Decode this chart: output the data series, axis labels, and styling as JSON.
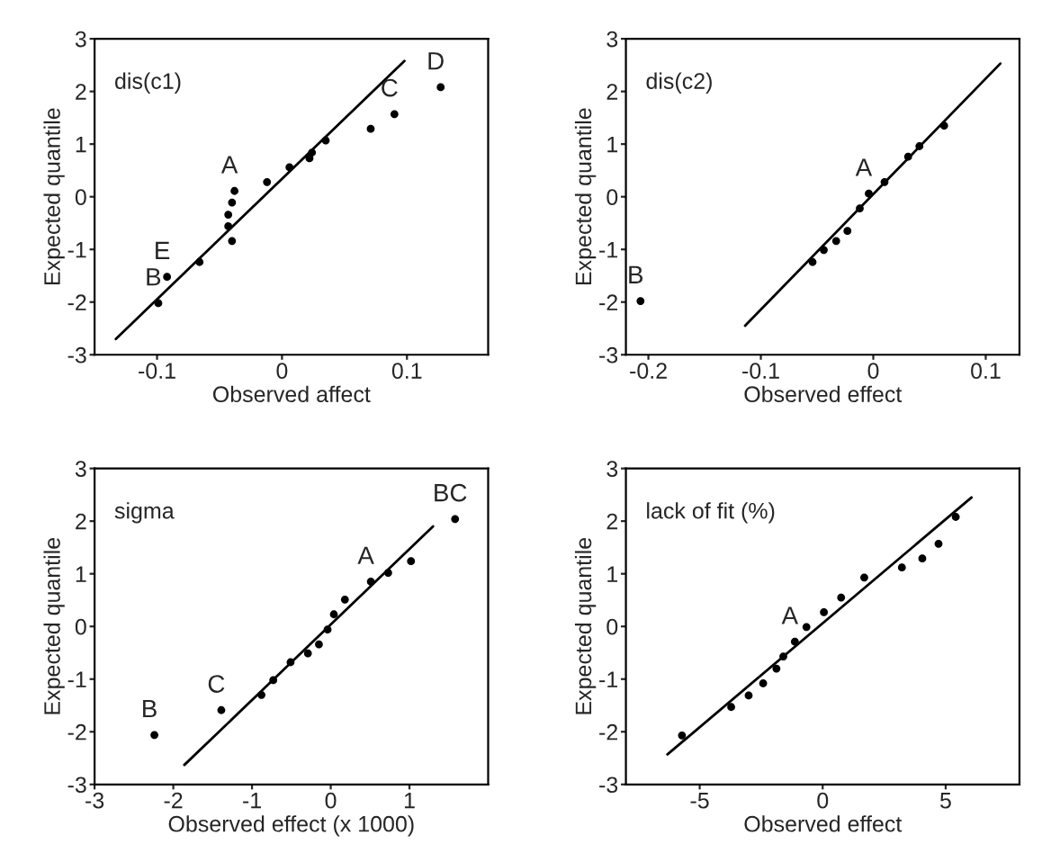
{
  "chart_data": [
    {
      "type": "scatter",
      "title": "dis(c1)",
      "xlabel": "Observed affect",
      "ylabel": "Expected quantile",
      "xlim": [
        -0.15,
        0.165
      ],
      "ylim": [
        -3,
        3
      ],
      "xticks": [
        -0.1,
        0,
        0.1
      ],
      "yticks": [
        -3,
        -2,
        -1,
        0,
        1,
        2,
        3
      ],
      "grid": false,
      "legend": false,
      "series": [
        {
          "color": "#000000",
          "marker": "circle",
          "x": [
            0.127,
            0.09,
            0.071,
            0.035,
            0.024,
            0.022,
            0.006,
            -0.012,
            -0.038,
            -0.04,
            -0.043,
            -0.043,
            -0.04,
            -0.066,
            -0.092,
            -0.099
          ],
          "values": [
            2.08,
            1.57,
            1.29,
            1.07,
            0.84,
            0.73,
            0.56,
            0.28,
            0.11,
            -0.11,
            -0.34,
            -0.56,
            -0.84,
            -1.24,
            -1.52,
            -2.02
          ]
        },
        {
          "type": "line",
          "color": "#000000",
          "marker": "none",
          "x": [
            -0.133,
            0.098
          ],
          "values": [
            -2.7,
            2.58
          ]
        }
      ],
      "annotations": [
        {
          "text": "D",
          "x": 0.127,
          "y": 2.08
        },
        {
          "text": "C",
          "x": 0.09,
          "y": 1.57
        },
        {
          "text": "A",
          "x": -0.038,
          "y": 0.11
        },
        {
          "text": "E",
          "x": -0.092,
          "y": -1.52
        },
        {
          "text": "B",
          "x": -0.099,
          "y": -2.02
        }
      ]
    },
    {
      "type": "scatter",
      "title": "dis(c2)",
      "xlabel": "Observed effect",
      "ylabel": "Expected quantile",
      "xlim": [
        -0.22,
        0.13
      ],
      "ylim": [
        -3,
        3
      ],
      "xticks": [
        -0.2,
        -0.1,
        0,
        0.1
      ],
      "yticks": [
        -3,
        -2,
        -1,
        0,
        1,
        2,
        3
      ],
      "grid": false,
      "legend": false,
      "series": [
        {
          "color": "#000000",
          "marker": "circle",
          "x": [
            -0.207,
            -0.054,
            -0.044,
            -0.033,
            -0.023,
            -0.012,
            -0.004,
            0.01,
            0.031,
            0.041,
            0.063
          ],
          "values": [
            -1.98,
            -1.24,
            -1.01,
            -0.84,
            -0.65,
            -0.22,
            0.06,
            0.28,
            0.76,
            0.96,
            1.35
          ]
        },
        {
          "type": "line",
          "color": "#000000",
          "marker": "none",
          "x": [
            -0.114,
            0.113
          ],
          "values": [
            -2.45,
            2.53
          ]
        }
      ],
      "annotations": [
        {
          "text": "A",
          "x": -0.004,
          "y": 0.06
        },
        {
          "text": "B",
          "x": -0.207,
          "y": -1.98
        }
      ]
    },
    {
      "type": "scatter",
      "title": "sigma",
      "xlabel": "Observed effect (x 1000)",
      "ylabel": "Expected quantile",
      "xlim": [
        -3,
        2
      ],
      "ylim": [
        -3,
        3
      ],
      "xticks": [
        -3,
        -2,
        -1,
        0,
        1
      ],
      "yticks": [
        -3,
        -2,
        -1,
        0,
        1,
        2,
        3
      ],
      "grid": false,
      "legend": false,
      "series": [
        {
          "color": "#000000",
          "marker": "circle",
          "x": [
            1.58,
            -2.24,
            -1.39,
            -0.88,
            -0.73,
            -0.51,
            -0.29,
            -0.15,
            -0.04,
            0.04,
            0.18,
            0.51,
            0.73,
            1.02
          ],
          "values": [
            2.04,
            -2.06,
            -1.59,
            -1.3,
            -1.02,
            -0.68,
            -0.51,
            -0.34,
            -0.06,
            0.23,
            0.51,
            0.85,
            1.02,
            1.24
          ]
        },
        {
          "type": "line",
          "color": "#000000",
          "marker": "none",
          "x": [
            -1.86,
            1.3
          ],
          "values": [
            -2.63,
            1.9
          ]
        }
      ],
      "annotations": [
        {
          "text": "BC",
          "x": 1.58,
          "y": 2.04
        },
        {
          "text": "A",
          "x": 0.51,
          "y": 0.85
        },
        {
          "text": "C",
          "x": -1.39,
          "y": -1.59
        },
        {
          "text": "B",
          "x": -2.24,
          "y": -2.06
        }
      ]
    },
    {
      "type": "scatter",
      "title": "lack of fit (%)",
      "xlabel": "Observed effect",
      "ylabel": "Expected quantile",
      "xlim": [
        -8,
        8
      ],
      "ylim": [
        -3,
        3
      ],
      "xticks": [
        -5,
        0,
        5
      ],
      "yticks": [
        -3,
        -2,
        -1,
        0,
        1,
        2,
        3
      ],
      "grid": false,
      "legend": false,
      "series": [
        {
          "color": "#000000",
          "marker": "circle",
          "x": [
            -5.72,
            -3.72,
            -3.01,
            -2.42,
            -1.88,
            -1.6,
            -1.13,
            -0.66,
            0.05,
            0.75,
            1.69,
            3.22,
            4.05,
            4.71,
            5.41
          ],
          "values": [
            -2.07,
            -1.53,
            -1.31,
            -1.08,
            -0.8,
            -0.57,
            -0.29,
            -0.01,
            0.27,
            0.55,
            0.93,
            1.12,
            1.29,
            1.57,
            2.08
          ]
        },
        {
          "type": "line",
          "color": "#000000",
          "marker": "none",
          "x": [
            -6.31,
            6.05
          ],
          "values": [
            -2.43,
            2.45
          ]
        }
      ],
      "annotations": [
        {
          "text": "A",
          "x": -1.13,
          "y": -0.29
        }
      ]
    }
  ]
}
